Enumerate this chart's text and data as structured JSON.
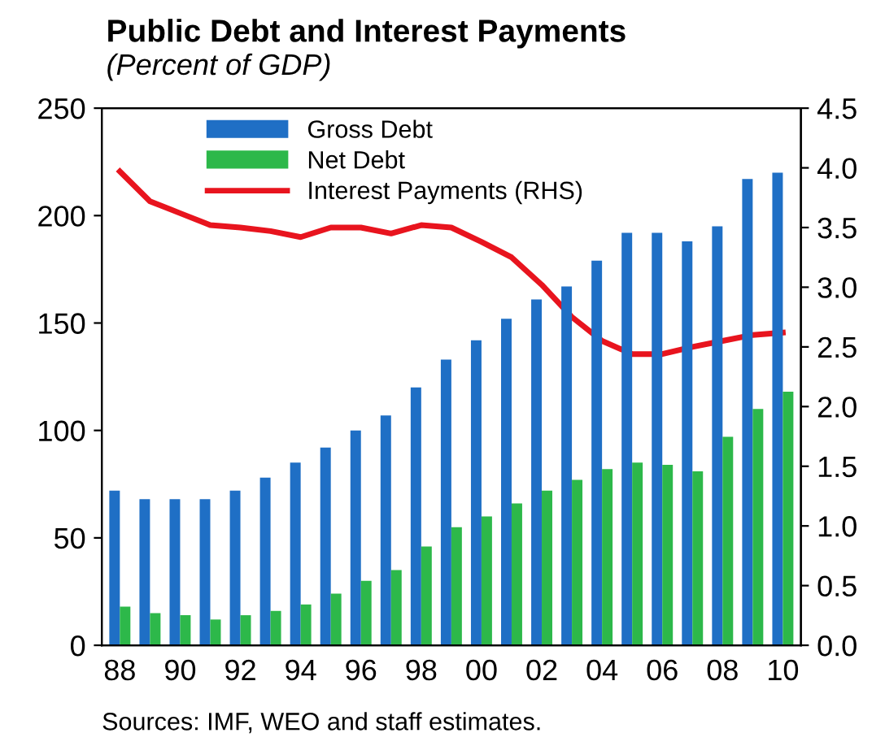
{
  "chart_data": {
    "type": "bar",
    "title": "Public Debt and Interest Payments",
    "subtitle": "(Percent of GDP)",
    "categories": [
      "88",
      null,
      "90",
      null,
      "92",
      null,
      "94",
      null,
      "96",
      null,
      "98",
      null,
      "00",
      null,
      "02",
      null,
      "04",
      null,
      "06",
      null,
      "08",
      null,
      "10"
    ],
    "series": [
      {
        "name": "Gross Debt",
        "color": "#1f6fc5",
        "values": [
          72,
          68,
          68,
          68,
          72,
          78,
          85,
          92,
          100,
          107,
          120,
          133,
          142,
          152,
          161,
          167,
          179,
          192,
          192,
          188,
          195,
          217,
          220
        ]
      },
      {
        "name": "Net Debt",
        "color": "#2db84a",
        "values": [
          18,
          15,
          14,
          12,
          14,
          16,
          19,
          24,
          30,
          35,
          46,
          55,
          60,
          66,
          72,
          77,
          82,
          85,
          84,
          81,
          97,
          110,
          118
        ]
      },
      {
        "name": "Interest Payments (RHS)",
        "type": "line",
        "axis": "y2",
        "color": "#e8141e",
        "values": [
          3.97,
          3.72,
          3.62,
          3.52,
          3.5,
          3.47,
          3.42,
          3.5,
          3.5,
          3.45,
          3.52,
          3.5,
          3.38,
          3.25,
          3.02,
          2.75,
          2.55,
          2.44,
          2.44,
          2.5,
          2.55,
          2.6,
          2.62
        ]
      }
    ],
    "ylim": [
      0,
      250
    ],
    "yticks": [
      0,
      50,
      100,
      150,
      200,
      250
    ],
    "y2lim": [
      0,
      4.5
    ],
    "y2ticks": [
      {
        "value": 0,
        "label": "0.0"
      },
      0.5,
      {
        "value": 1,
        "label": "1.0"
      },
      1.5,
      {
        "value": 2,
        "label": "2.0"
      },
      2.5,
      {
        "value": 3,
        "label": "3.0"
      },
      3.5,
      {
        "value": 4,
        "label": "4.0"
      },
      4.5
    ],
    "legend": "top",
    "grid": false,
    "marker": "none",
    "line_style": "solid",
    "annotations": [
      "Sources: IMF, WEO and staff estimates."
    ]
  }
}
